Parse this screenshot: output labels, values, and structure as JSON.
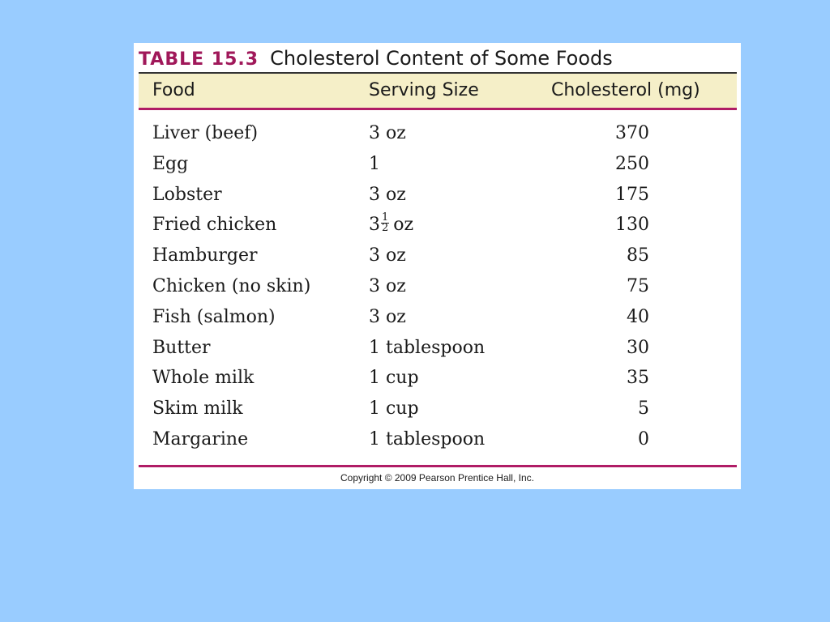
{
  "table": {
    "label": "TABLE 15.3",
    "title": "Cholesterol Content of Some Foods",
    "headers": {
      "food": "Food",
      "serving": "Serving Size",
      "cholesterol": "Cholesterol (mg)"
    },
    "rows": [
      {
        "food": "Liver (beef)",
        "serving": "3 oz",
        "cholesterol": "370"
      },
      {
        "food": "Egg",
        "serving": "1",
        "cholesterol": "250"
      },
      {
        "food": "Lobster",
        "serving": "3 oz",
        "cholesterol": "175"
      },
      {
        "food": "Fried chicken",
        "serving_whole": "3",
        "serving_frac_num": "1",
        "serving_frac_den": "2",
        "serving_unit": "oz",
        "cholesterol": "130"
      },
      {
        "food": "Hamburger",
        "serving": "3 oz",
        "cholesterol": "85"
      },
      {
        "food": "Chicken (no skin)",
        "serving": "3 oz",
        "cholesterol": "75"
      },
      {
        "food": "Fish (salmon)",
        "serving": "3 oz",
        "cholesterol": "40"
      },
      {
        "food": "Butter",
        "serving": "1 tablespoon",
        "cholesterol": "30"
      },
      {
        "food": "Whole milk",
        "serving": "1 cup",
        "cholesterol": "35"
      },
      {
        "food": "Skim milk",
        "serving": "1 cup",
        "cholesterol": "5"
      },
      {
        "food": "Margarine",
        "serving": "1 tablespoon",
        "cholesterol": "0"
      }
    ]
  },
  "copyright": "Copyright © 2009 Pearson Prentice Hall, Inc.",
  "colors": {
    "background": "#99ccff",
    "accent": "#b01c66",
    "header_band": "#f5efc8"
  }
}
